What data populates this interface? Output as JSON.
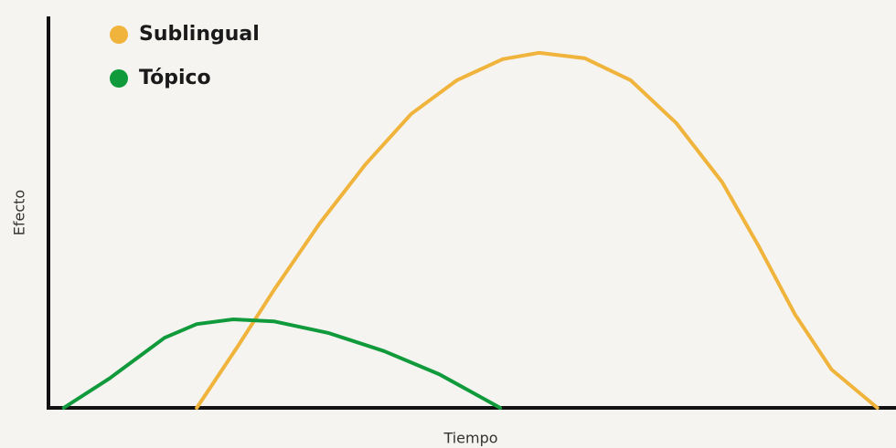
{
  "chart_data": {
    "type": "line",
    "xlabel": "Tiempo",
    "ylabel": "Efecto",
    "xlim": [
      0,
      100
    ],
    "ylim": [
      0,
      100
    ],
    "legend": "top-left",
    "series": [
      {
        "name": "Sublingual",
        "color": "#f0b43c",
        "x": [
          17.5,
          22.3,
          26.6,
          32.0,
          37.4,
          42.8,
          48.2,
          53.6,
          57.9,
          63.3,
          68.7,
          74.1,
          79.5,
          83.8,
          88.1,
          92.4,
          97.8
        ],
        "values": [
          0,
          15.6,
          30.1,
          47.1,
          62.2,
          75.1,
          83.7,
          89.1,
          90.7,
          89.3,
          83.7,
          72.7,
          57.6,
          41.3,
          23.8,
          9.8,
          0
        ]
      },
      {
        "name": "Tópico",
        "color": "#109a3c",
        "x": [
          1.8,
          7.2,
          13.7,
          17.5,
          21.8,
          26.6,
          33.1,
          39.6,
          46.1,
          53.3
        ],
        "values": [
          0,
          7.5,
          17.9,
          21.4,
          22.6,
          22.1,
          19.1,
          14.5,
          8.6,
          0
        ]
      }
    ]
  }
}
